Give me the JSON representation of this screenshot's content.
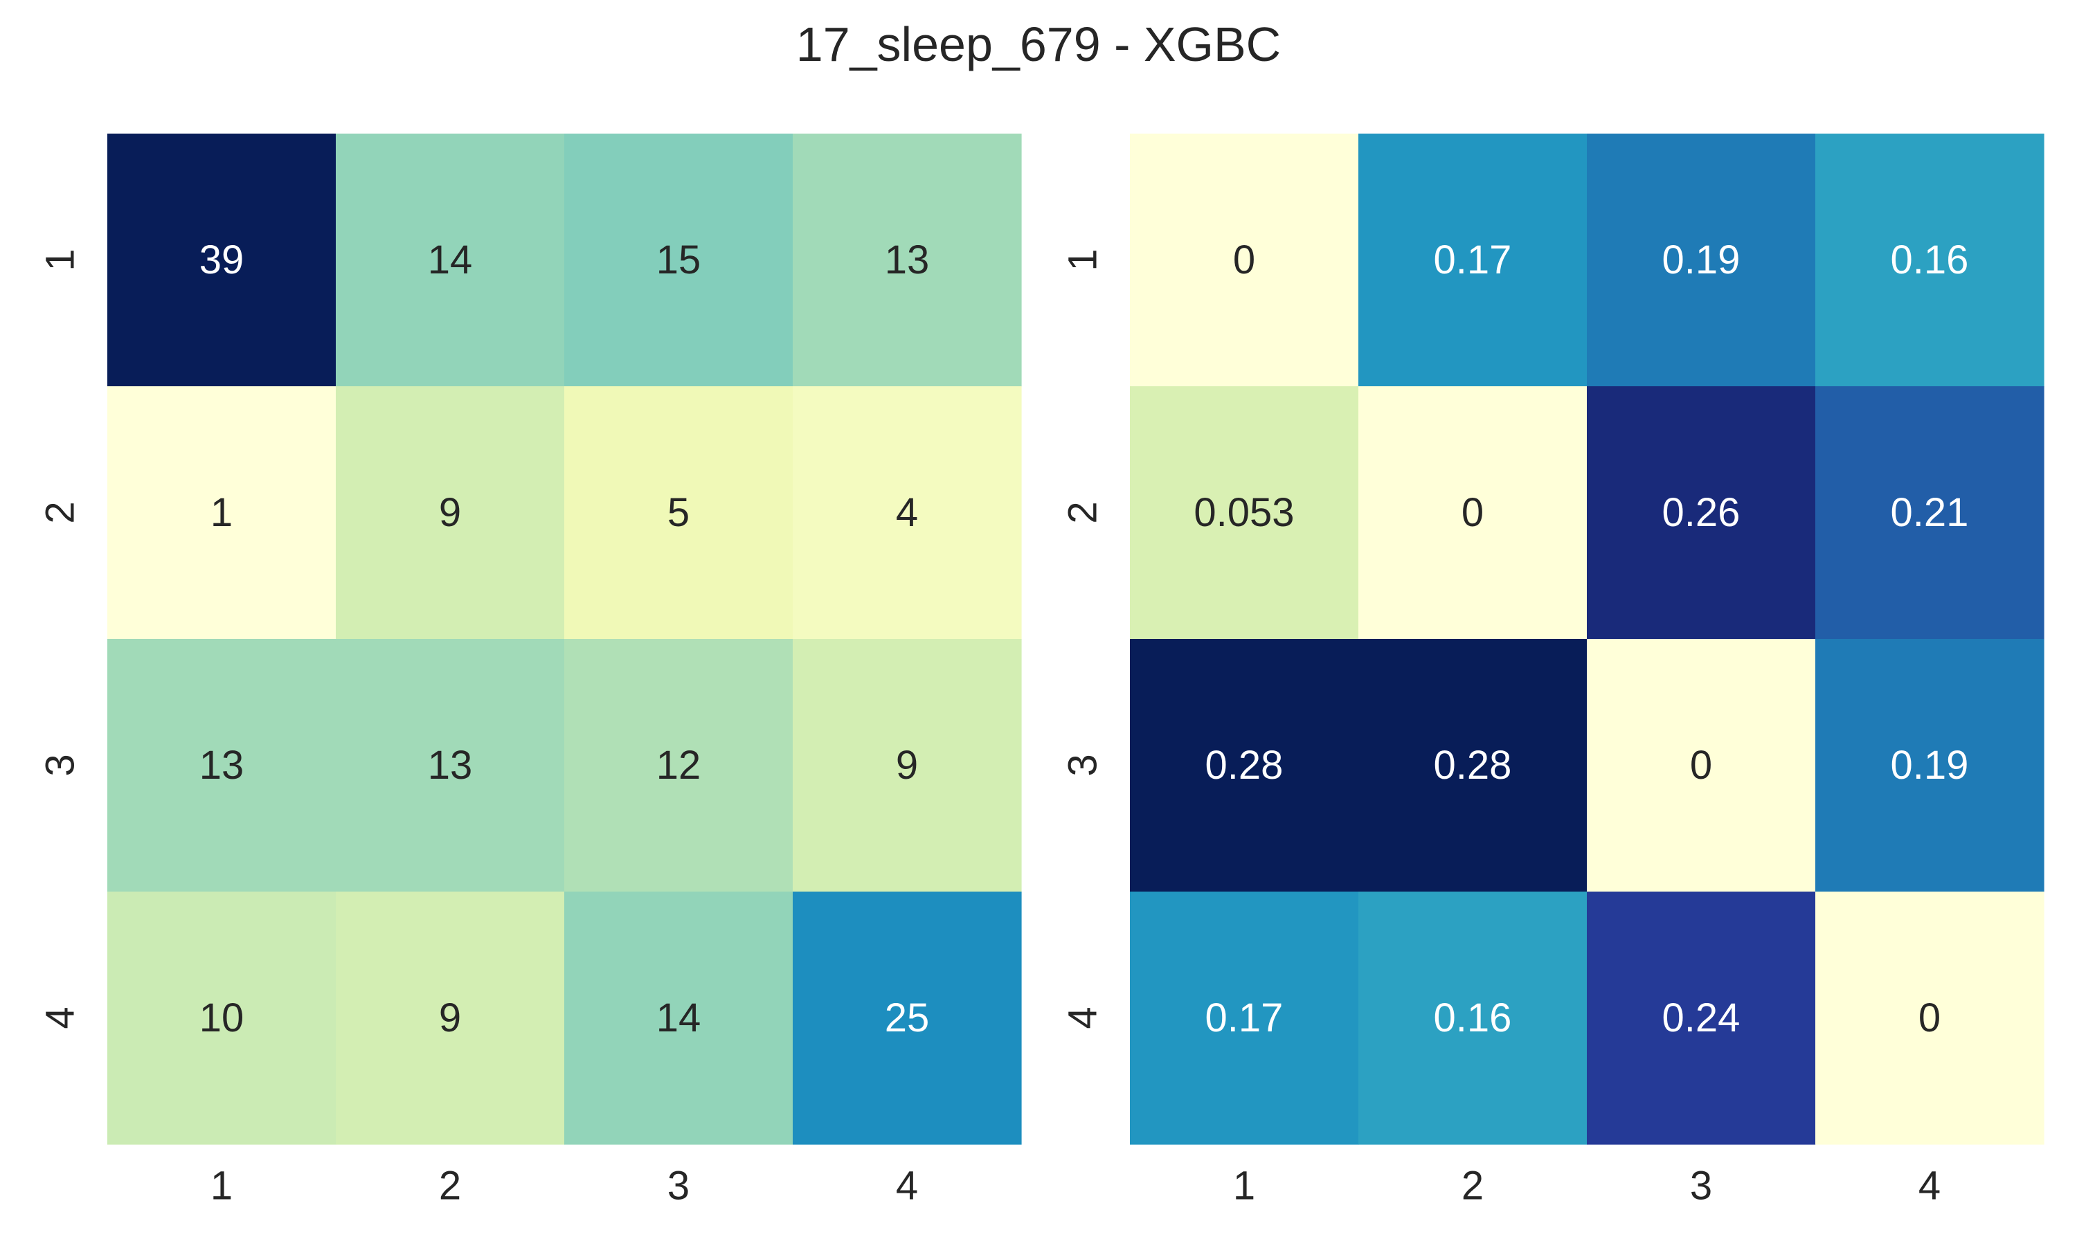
{
  "chart_data": [
    {
      "type": "heatmap",
      "rows": [
        "1",
        "2",
        "3",
        "4"
      ],
      "columns": [
        "1",
        "2",
        "3",
        "4"
      ],
      "values": [
        [
          "39",
          "14",
          "15",
          "13"
        ],
        [
          "1",
          "9",
          "5",
          "4"
        ],
        [
          "13",
          "13",
          "12",
          "9"
        ],
        [
          "10",
          "9",
          "14",
          "25"
        ]
      ],
      "colormap": "YlGnBu",
      "range": [
        1,
        39
      ],
      "colorbar": false,
      "grid": false
    },
    {
      "type": "heatmap",
      "rows": [
        "1",
        "2",
        "3",
        "4"
      ],
      "columns": [
        "1",
        "2",
        "3",
        "4"
      ],
      "values": [
        [
          "0",
          "0.17",
          "0.19",
          "0.16"
        ],
        [
          "0.053",
          "0",
          "0.26",
          "0.21"
        ],
        [
          "0.28",
          "0.28",
          "0",
          "0.19"
        ],
        [
          "0.17",
          "0.16",
          "0.24",
          "0"
        ]
      ],
      "colormap": "YlGnBu",
      "range": [
        0,
        0.28
      ],
      "colorbar": false,
      "grid": false
    }
  ],
  "title": "17_sleep_679 - XGBC",
  "colors": {
    "background": "#ffffff",
    "text_dark": "#262626",
    "text_light": "#ffffff"
  }
}
